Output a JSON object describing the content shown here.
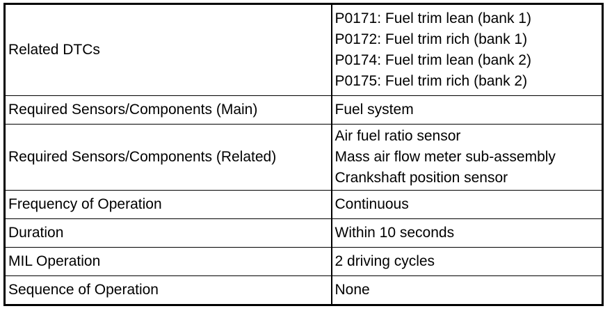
{
  "rows": [
    {
      "label": "Related DTCs",
      "values": [
        "P0171: Fuel trim lean (bank 1)",
        "P0172: Fuel trim rich (bank 1)",
        "P0174: Fuel trim lean (bank 2)",
        "P0175: Fuel trim rich (bank 2)"
      ]
    },
    {
      "label": "Required Sensors/Components (Main)",
      "values": [
        "Fuel system"
      ]
    },
    {
      "label": "Required Sensors/Components (Related)",
      "values": [
        "Air fuel ratio sensor",
        "Mass air flow meter sub-assembly",
        "Crankshaft position sensor"
      ]
    },
    {
      "label": "Frequency of Operation",
      "values": [
        "Continuous"
      ]
    },
    {
      "label": "Duration",
      "values": [
        "Within 10 seconds"
      ]
    },
    {
      "label": "MIL Operation",
      "values": [
        "2 driving cycles"
      ]
    },
    {
      "label": "Sequence of Operation",
      "values": [
        "None"
      ]
    }
  ]
}
